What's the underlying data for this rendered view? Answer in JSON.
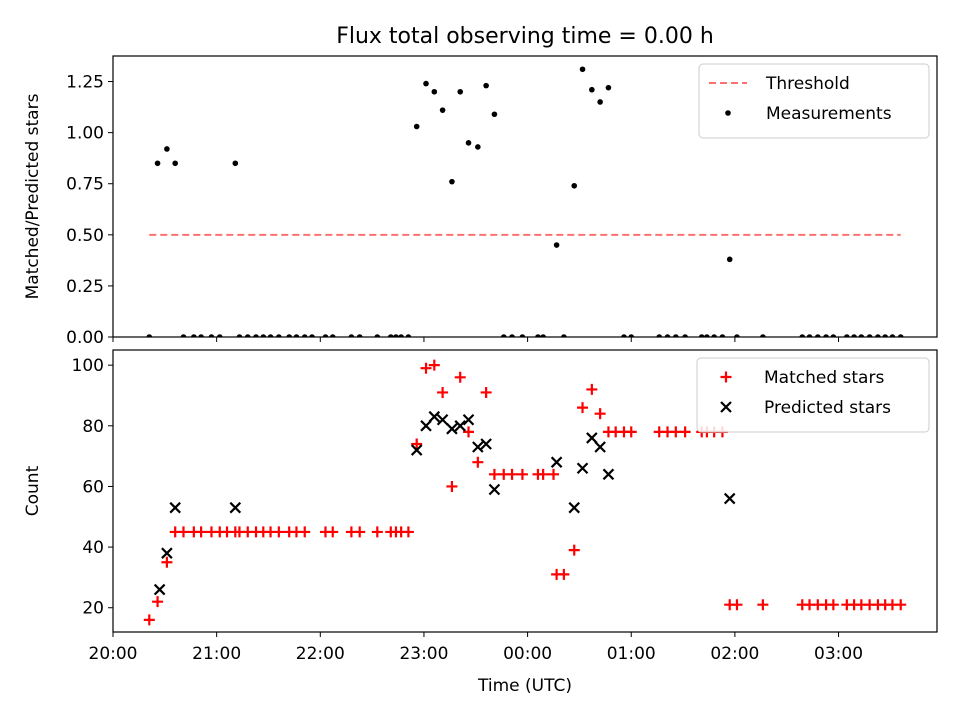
{
  "title": "Flux total observing time = 0.00 h",
  "chart_data": [
    {
      "type": "scatter",
      "ylabel": "Matched/Predicted stars",
      "ylim": [
        0,
        1.375
      ],
      "yticks": [
        0,
        0.25,
        0.5,
        0.75,
        1.0,
        1.25
      ],
      "ytick_labels": [
        "0.00",
        "0.25",
        "0.50",
        "0.75",
        "1.00",
        "1.25"
      ],
      "xlim_hours": [
        20.0,
        27.95
      ],
      "legend_position": "top-right",
      "threshold": {
        "name": "Threshold",
        "value": 0.5,
        "x_range": [
          20.35,
          27.6
        ],
        "color": "#ff7070",
        "style": "dashed"
      },
      "series": [
        {
          "name": "Measurements",
          "color": "#000000",
          "marker": "dot",
          "points": [
            [
              20.35,
              0
            ],
            [
              20.43,
              0.85
            ],
            [
              20.52,
              0.92
            ],
            [
              20.6,
              0.85
            ],
            [
              20.68,
              0
            ],
            [
              20.78,
              0
            ],
            [
              20.85,
              0
            ],
            [
              20.95,
              0
            ],
            [
              21.03,
              0
            ],
            [
              21.18,
              0.85
            ],
            [
              21.22,
              0
            ],
            [
              21.3,
              0
            ],
            [
              21.38,
              0
            ],
            [
              21.45,
              0
            ],
            [
              21.52,
              0
            ],
            [
              21.6,
              0
            ],
            [
              21.7,
              0
            ],
            [
              21.77,
              0
            ],
            [
              21.85,
              0
            ],
            [
              21.92,
              0
            ],
            [
              22.05,
              0
            ],
            [
              22.12,
              0
            ],
            [
              22.3,
              0
            ],
            [
              22.38,
              0
            ],
            [
              22.55,
              0
            ],
            [
              22.68,
              0
            ],
            [
              22.73,
              0
            ],
            [
              22.78,
              0
            ],
            [
              22.85,
              0
            ],
            [
              22.93,
              1.03
            ],
            [
              23.02,
              1.24
            ],
            [
              23.1,
              1.2
            ],
            [
              23.18,
              1.11
            ],
            [
              23.27,
              0.76
            ],
            [
              23.35,
              1.2
            ],
            [
              23.43,
              0.95
            ],
            [
              23.52,
              0.93
            ],
            [
              23.6,
              1.23
            ],
            [
              23.68,
              1.09
            ],
            [
              23.77,
              0
            ],
            [
              23.85,
              0
            ],
            [
              23.95,
              0
            ],
            [
              24.1,
              0
            ],
            [
              24.15,
              0
            ],
            [
              24.28,
              0.45
            ],
            [
              24.35,
              0
            ],
            [
              24.45,
              0.74
            ],
            [
              24.53,
              1.31
            ],
            [
              24.62,
              1.21
            ],
            [
              24.7,
              1.15
            ],
            [
              24.78,
              1.22
            ],
            [
              24.93,
              0
            ],
            [
              25.0,
              0
            ],
            [
              25.27,
              0
            ],
            [
              25.35,
              0
            ],
            [
              25.43,
              0
            ],
            [
              25.52,
              0
            ],
            [
              25.68,
              0
            ],
            [
              25.73,
              0
            ],
            [
              25.8,
              0
            ],
            [
              25.88,
              0
            ],
            [
              25.95,
              0.38
            ],
            [
              26.02,
              0
            ],
            [
              26.27,
              0
            ],
            [
              26.65,
              0
            ],
            [
              26.72,
              0
            ],
            [
              26.8,
              0
            ],
            [
              26.88,
              0
            ],
            [
              26.95,
              0
            ],
            [
              27.08,
              0
            ],
            [
              27.15,
              0
            ],
            [
              27.22,
              0
            ],
            [
              27.3,
              0
            ],
            [
              27.38,
              0
            ],
            [
              27.45,
              0
            ],
            [
              27.52,
              0
            ],
            [
              27.6,
              0
            ]
          ]
        }
      ]
    },
    {
      "type": "scatter",
      "xlabel": "Time (UTC)",
      "ylabel": "Count",
      "ylim": [
        12,
        105
      ],
      "yticks": [
        20,
        40,
        60,
        80,
        100
      ],
      "ytick_labels": [
        "20",
        "40",
        "60",
        "80",
        "100"
      ],
      "xlim_hours": [
        20.0,
        27.95
      ],
      "xticks_hours": [
        20,
        21,
        22,
        23,
        24,
        25,
        26,
        27
      ],
      "xtick_labels": [
        "20:00",
        "21:00",
        "22:00",
        "23:00",
        "00:00",
        "01:00",
        "02:00",
        "03:00"
      ],
      "legend_position": "top-right",
      "series": [
        {
          "name": "Matched stars",
          "color": "#ff0000",
          "marker": "plus",
          "points": [
            [
              20.35,
              16
            ],
            [
              20.43,
              22
            ],
            [
              20.52,
              35
            ],
            [
              20.6,
              45
            ],
            [
              20.68,
              45
            ],
            [
              20.78,
              45
            ],
            [
              20.85,
              45
            ],
            [
              20.95,
              45
            ],
            [
              21.03,
              45
            ],
            [
              21.1,
              45
            ],
            [
              21.18,
              45
            ],
            [
              21.22,
              45
            ],
            [
              21.3,
              45
            ],
            [
              21.38,
              45
            ],
            [
              21.45,
              45
            ],
            [
              21.52,
              45
            ],
            [
              21.6,
              45
            ],
            [
              21.7,
              45
            ],
            [
              21.77,
              45
            ],
            [
              21.85,
              45
            ],
            [
              22.05,
              45
            ],
            [
              22.12,
              45
            ],
            [
              22.3,
              45
            ],
            [
              22.38,
              45
            ],
            [
              22.55,
              45
            ],
            [
              22.68,
              45
            ],
            [
              22.73,
              45
            ],
            [
              22.78,
              45
            ],
            [
              22.85,
              45
            ],
            [
              22.93,
              74
            ],
            [
              23.02,
              99
            ],
            [
              23.1,
              100
            ],
            [
              23.18,
              91
            ],
            [
              23.27,
              60
            ],
            [
              23.35,
              96
            ],
            [
              23.43,
              78
            ],
            [
              23.52,
              68
            ],
            [
              23.6,
              91
            ],
            [
              23.68,
              64
            ],
            [
              23.77,
              64
            ],
            [
              23.85,
              64
            ],
            [
              23.95,
              64
            ],
            [
              24.1,
              64
            ],
            [
              24.15,
              64
            ],
            [
              24.25,
              64
            ],
            [
              24.28,
              31
            ],
            [
              24.35,
              31
            ],
            [
              24.45,
              39
            ],
            [
              24.53,
              86
            ],
            [
              24.62,
              92
            ],
            [
              24.7,
              84
            ],
            [
              24.78,
              78
            ],
            [
              24.85,
              78
            ],
            [
              24.93,
              78
            ],
            [
              25.0,
              78
            ],
            [
              25.27,
              78
            ],
            [
              25.35,
              78
            ],
            [
              25.43,
              78
            ],
            [
              25.52,
              78
            ],
            [
              25.68,
              78
            ],
            [
              25.73,
              78
            ],
            [
              25.8,
              78
            ],
            [
              25.88,
              78
            ],
            [
              25.95,
              21
            ],
            [
              26.02,
              21
            ],
            [
              26.27,
              21
            ],
            [
              26.65,
              21
            ],
            [
              26.72,
              21
            ],
            [
              26.8,
              21
            ],
            [
              26.88,
              21
            ],
            [
              26.95,
              21
            ],
            [
              27.08,
              21
            ],
            [
              27.15,
              21
            ],
            [
              27.22,
              21
            ],
            [
              27.3,
              21
            ],
            [
              27.38,
              21
            ],
            [
              27.45,
              21
            ],
            [
              27.52,
              21
            ],
            [
              27.6,
              21
            ]
          ]
        },
        {
          "name": "Predicted stars",
          "color": "#000000",
          "marker": "x",
          "points": [
            [
              20.45,
              26
            ],
            [
              20.52,
              38
            ],
            [
              20.6,
              53
            ],
            [
              21.18,
              53
            ],
            [
              22.93,
              72
            ],
            [
              23.02,
              80
            ],
            [
              23.1,
              83
            ],
            [
              23.18,
              82
            ],
            [
              23.27,
              79
            ],
            [
              23.35,
              80
            ],
            [
              23.43,
              82
            ],
            [
              23.52,
              73
            ],
            [
              23.6,
              74
            ],
            [
              23.68,
              59
            ],
            [
              24.28,
              68
            ],
            [
              24.45,
              53
            ],
            [
              24.53,
              66
            ],
            [
              24.62,
              76
            ],
            [
              24.7,
              73
            ],
            [
              24.78,
              64
            ],
            [
              25.95,
              56
            ]
          ]
        }
      ]
    }
  ]
}
